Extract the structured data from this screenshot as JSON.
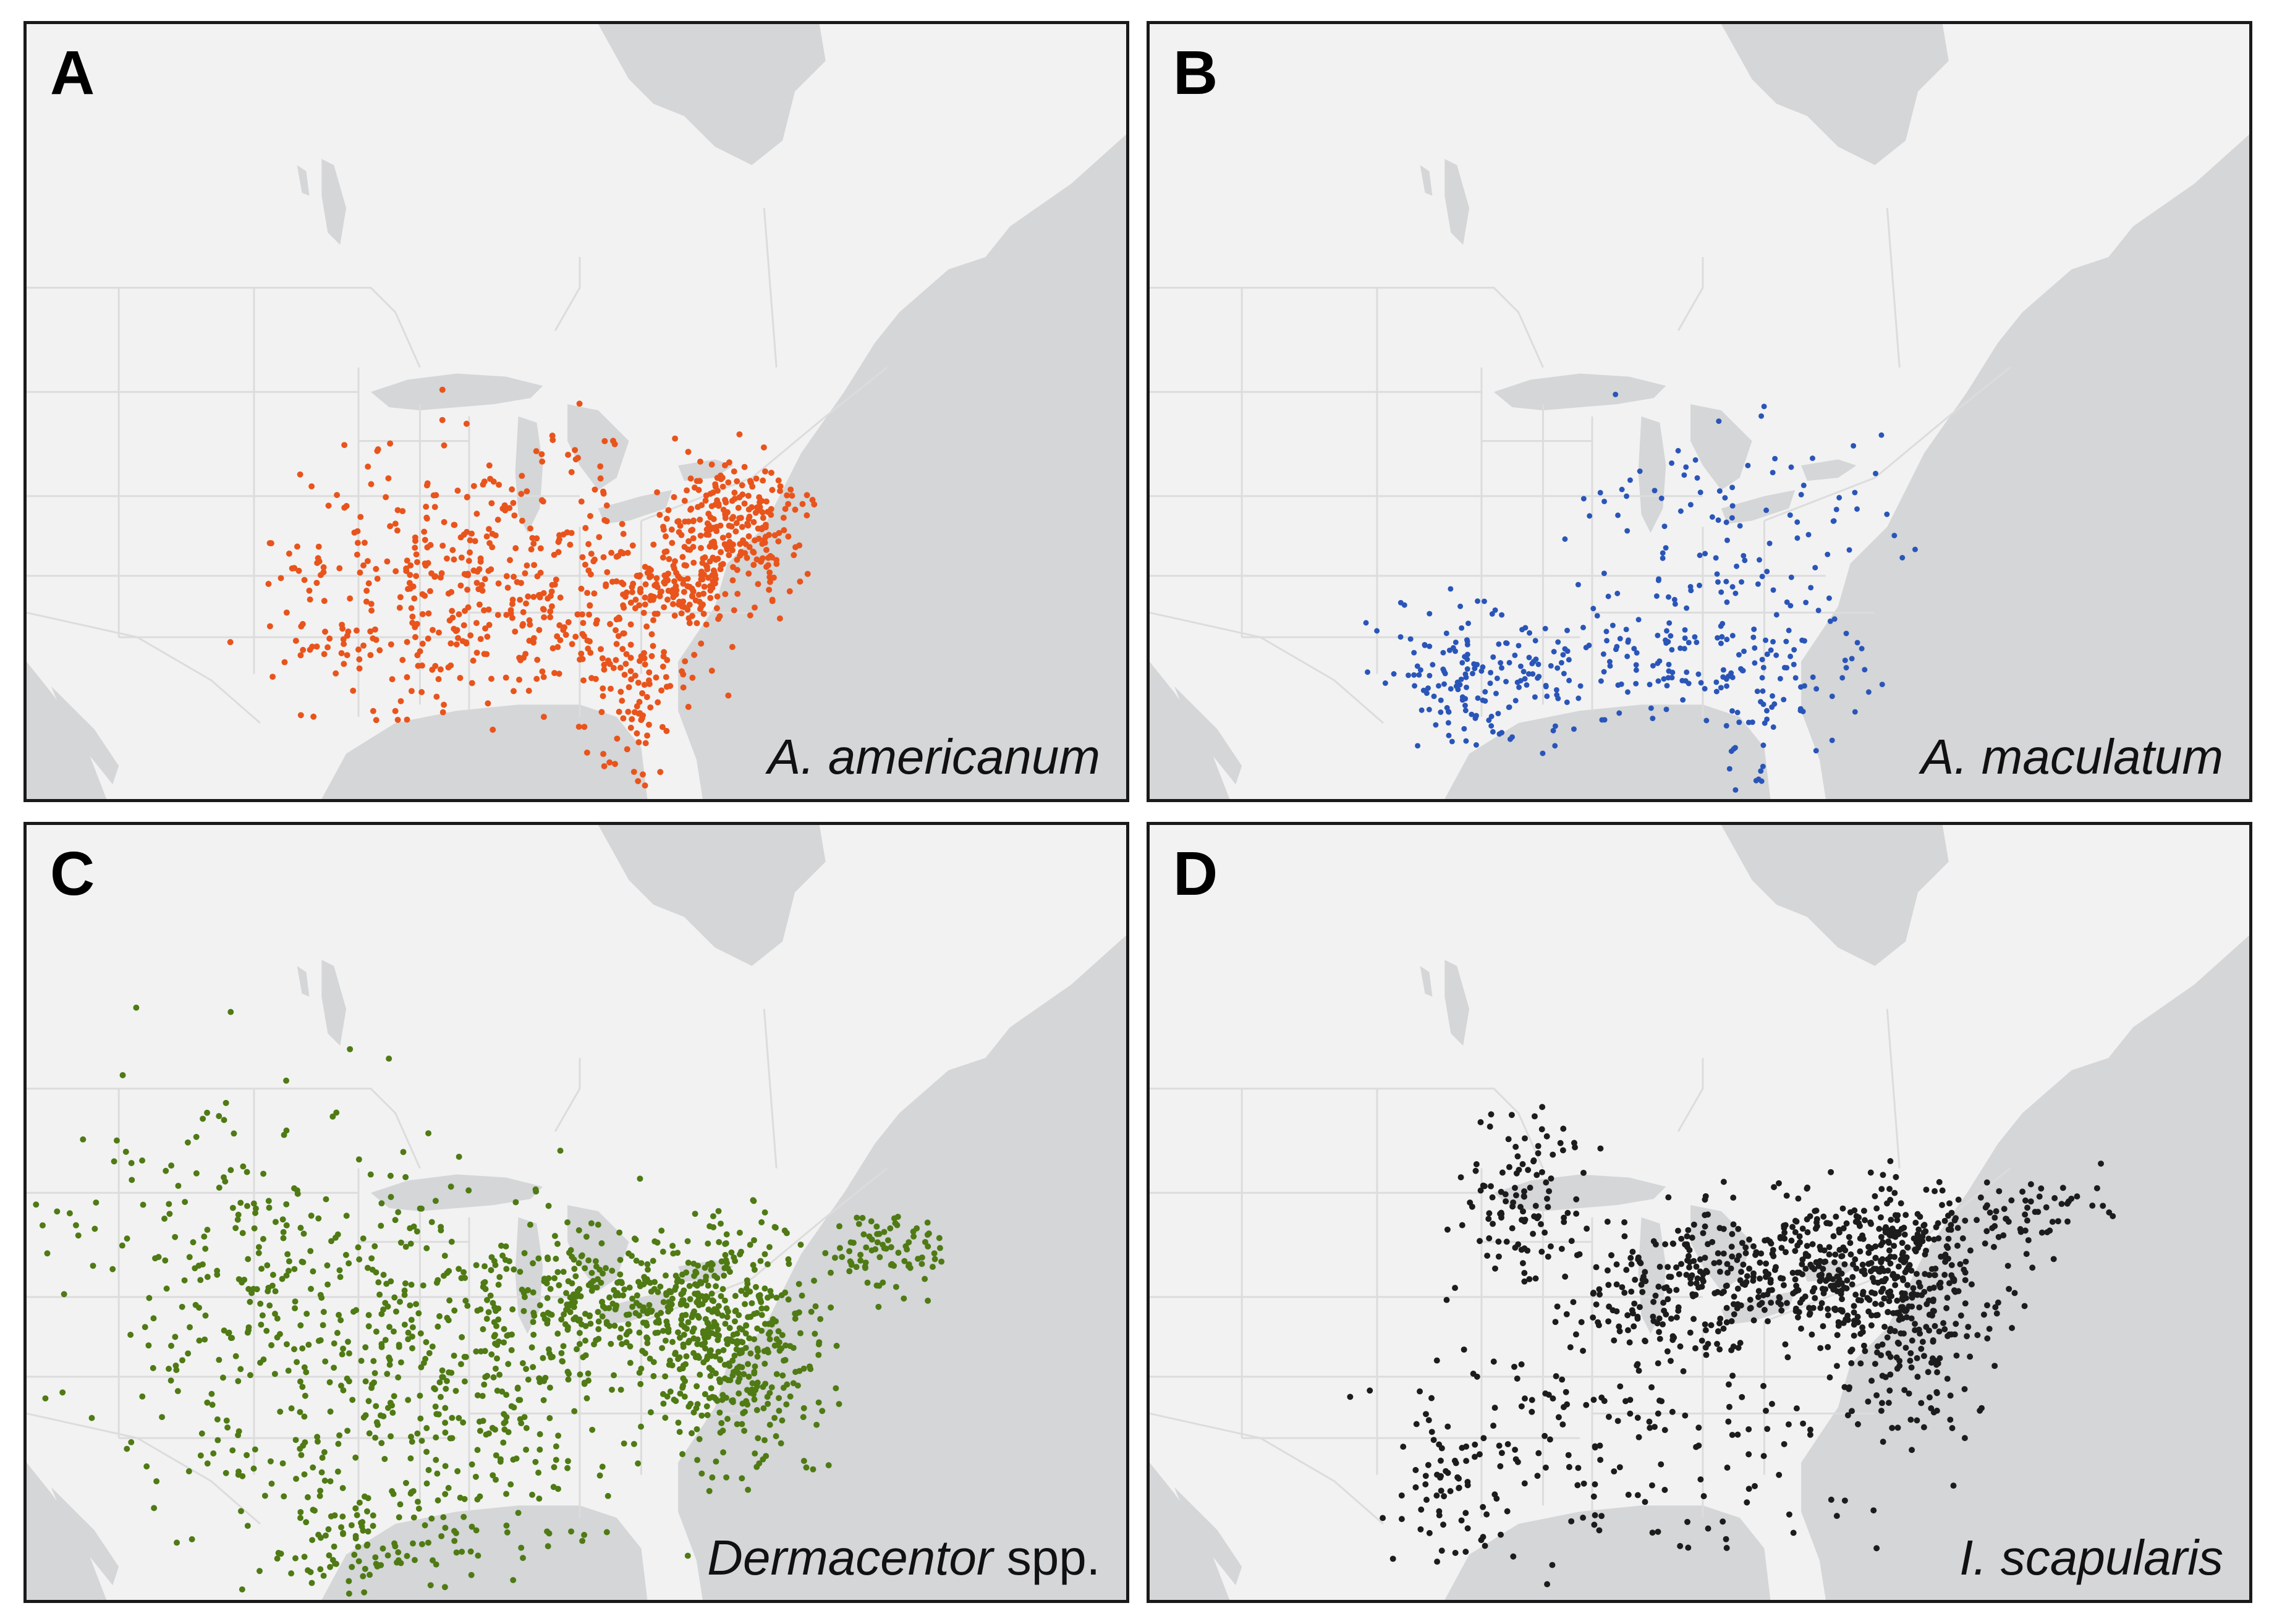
{
  "colors": {
    "land": "#f2f2f2",
    "water": "#d4d6d8",
    "border": "#dcdcdc",
    "frame": "#1a1a1a"
  },
  "panels": [
    {
      "letter": "A",
      "species_italic": "A. americanum",
      "species_plain": "",
      "dot_color": "#e8541c",
      "intensity": "high"
    },
    {
      "letter": "B",
      "species_italic": "A. maculatum",
      "species_plain": "",
      "dot_color": "#2a55b8",
      "intensity": "low"
    },
    {
      "letter": "C",
      "species_italic": "Dermacentor",
      "species_plain": " spp.",
      "dot_color": "#4f7a14",
      "intensity": "very-high"
    },
    {
      "letter": "D",
      "species_italic": "I. scapularis",
      "species_plain": "",
      "dot_color": "#1c1c1c",
      "intensity": "high"
    }
  ]
}
